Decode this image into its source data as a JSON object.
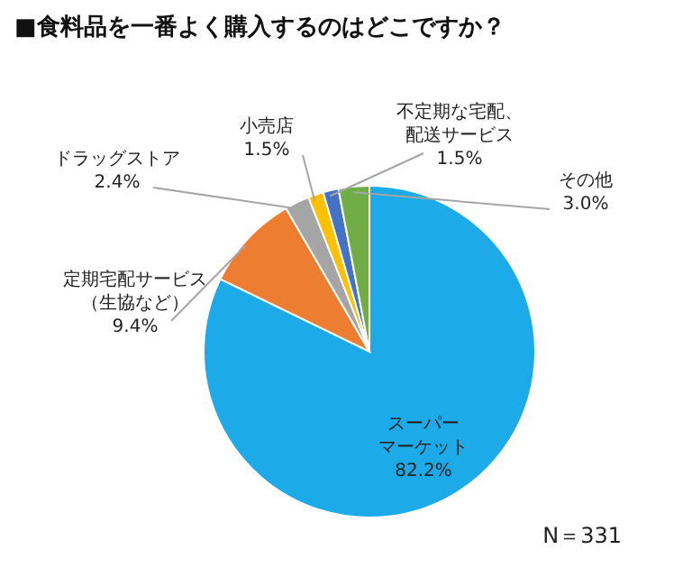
{
  "chart_data": {
    "type": "pie",
    "title": "■食料品を一番よく購入するのはどこですか？",
    "categories": [
      "スーパーマーケット",
      "定期宅配サービス（生協など）",
      "ドラッグストア",
      "小売店",
      "不定期な宅配、配送サービス",
      "その他"
    ],
    "values": [
      82.2,
      9.4,
      2.4,
      1.5,
      1.5,
      3.0
    ],
    "value_labels": [
      "82.2%",
      "9.4%",
      "2.4%",
      "1.5%",
      "1.5%",
      "3.0%"
    ],
    "colors": [
      "#1cabe8",
      "#ed7d31",
      "#a5a5a5",
      "#ffc000",
      "#4472c4",
      "#70ad47"
    ],
    "annotations": [
      "N＝331"
    ],
    "legend": false
  }
}
